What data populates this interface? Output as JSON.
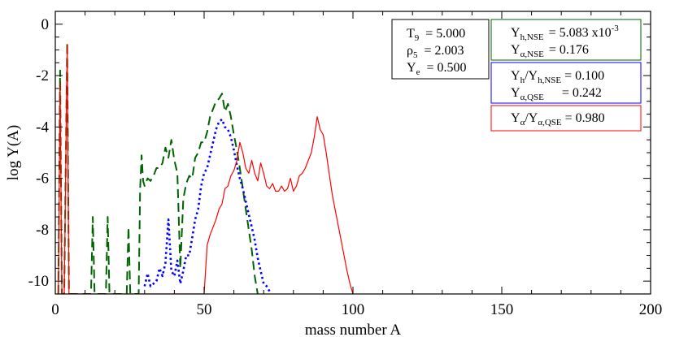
{
  "chart_data": {
    "type": "line",
    "xlabel": "mass number A",
    "ylabel": "log Y(A)",
    "xlim": [
      0,
      200
    ],
    "ylim": [
      -10.5,
      0.5
    ],
    "xticks": [
      0,
      50,
      100,
      150,
      200
    ],
    "xtick_labels": [
      "0",
      "50",
      "100",
      "150",
      "200"
    ],
    "yticks": [
      0,
      -2,
      -4,
      -6,
      -8,
      -10
    ],
    "ytick_labels": [
      "0",
      "-2",
      "-4",
      "-6",
      "-8",
      "-10"
    ],
    "grid": false,
    "series": [
      {
        "color": "#006400",
        "dash": "long-dash",
        "x": [
          1,
          1.6,
          2.2,
          3,
          4,
          4.6,
          12,
          12.6,
          13.2,
          17,
          17.6,
          18.2,
          24,
          24.6,
          25.2,
          28,
          28.5,
          29,
          29.5,
          30,
          31,
          32,
          33,
          34,
          35,
          36,
          37,
          38,
          39,
          40,
          41,
          42,
          43,
          44,
          45,
          46,
          47,
          48,
          49,
          50,
          51,
          52,
          53,
          54,
          55,
          56,
          57,
          58,
          59,
          60,
          61,
          62,
          63,
          64,
          65,
          66,
          67,
          68
        ],
        "y": [
          -10.5,
          -1.8,
          -10.5,
          -10.5,
          -0.7,
          -10.5,
          -10.5,
          -7.5,
          -10.5,
          -10.5,
          -7.5,
          -10.5,
          -10.5,
          -7.9,
          -10.5,
          -10.5,
          -6.4,
          -5.1,
          -6.1,
          -6.3,
          -6.0,
          -6.1,
          -5.9,
          -5.6,
          -5.6,
          -5.4,
          -4.8,
          -5.2,
          -4.5,
          -5.3,
          -5.8,
          -9.5,
          -6.8,
          -6.2,
          -5.9,
          -6.0,
          -5.2,
          -5.0,
          -4.6,
          -4.6,
          -4.2,
          -3.6,
          -3.3,
          -3.0,
          -2.9,
          -2.7,
          -3.4,
          -3.1,
          -3.6,
          -4.3,
          -4.9,
          -5.6,
          -6.4,
          -7.2,
          -8.0,
          -8.8,
          -9.8,
          -10.5
        ]
      },
      {
        "color": "#0000ff",
        "dash": "dotted",
        "x": [
          30,
          31,
          32,
          33,
          34,
          35,
          36,
          37,
          38,
          39,
          40,
          41,
          42,
          43,
          44,
          45,
          46,
          47,
          48,
          49,
          50,
          51,
          52,
          53,
          54,
          55,
          56,
          57,
          58,
          59,
          60,
          61,
          62,
          63,
          64,
          65,
          66,
          67,
          68,
          69,
          70,
          71,
          72
        ],
        "y": [
          -10.2,
          -9.7,
          -10.2,
          -10.1,
          -10.0,
          -9.5,
          -9.8,
          -9.3,
          -7.6,
          -9.6,
          -9.8,
          -9.2,
          -10.1,
          -9.6,
          -9.0,
          -9.0,
          -8.3,
          -7.6,
          -7.2,
          -6.3,
          -5.8,
          -5.6,
          -5.1,
          -4.6,
          -4.1,
          -3.8,
          -3.7,
          -4.0,
          -4.1,
          -4.4,
          -4.9,
          -5.5,
          -6.0,
          -6.4,
          -6.9,
          -7.4,
          -7.9,
          -8.4,
          -9.1,
          -9.6,
          -10.1,
          -10.2,
          -10.4
        ]
      },
      {
        "color": "#ff0000",
        "dash": "solid",
        "x": [
          1,
          1.6,
          2.2,
          3,
          4,
          4.6,
          50,
          51,
          52,
          53,
          54,
          55,
          56,
          57,
          58,
          59,
          60,
          61,
          62,
          63,
          64,
          65,
          66,
          67,
          68,
          69,
          70,
          71,
          72,
          73,
          74,
          75,
          76,
          77,
          78,
          79,
          80,
          81,
          82,
          83,
          84,
          85,
          86,
          87,
          88,
          89,
          90,
          91,
          92,
          93,
          94,
          95,
          96,
          97,
          98,
          99,
          100
        ],
        "y": [
          -10.5,
          -2.3,
          -10.5,
          -10.5,
          -0.8,
          -10.5,
          -10.5,
          -8.6,
          -8.2,
          -7.9,
          -7.6,
          -7.2,
          -7.0,
          -6.4,
          -6.3,
          -5.9,
          -5.7,
          -5.3,
          -4.6,
          -5.0,
          -5.6,
          -5.8,
          -5.3,
          -5.8,
          -6.1,
          -5.4,
          -5.8,
          -6.3,
          -6.4,
          -6.2,
          -6.5,
          -6.5,
          -6.3,
          -6.5,
          -6.4,
          -6.0,
          -6.5,
          -6.3,
          -5.9,
          -5.8,
          -5.6,
          -5.3,
          -5.0,
          -4.4,
          -3.6,
          -4.1,
          -4.3,
          -5.0,
          -5.8,
          -6.6,
          -7.2,
          -7.8,
          -8.4,
          -9.0,
          -9.6,
          -10.1,
          -10.5
        ]
      }
    ],
    "info_box": {
      "rows": [
        {
          "sym": "T",
          "sub": "9",
          "val": "= 5.000"
        },
        {
          "sym": "ρ",
          "sub": "5",
          "val": "= 2.003"
        },
        {
          "sym": "Y",
          "sub": "e",
          "val": "= 0.500"
        }
      ]
    },
    "legend_boxes": [
      {
        "color": "#006400",
        "lines": [
          {
            "sym": "Y",
            "sub": "h,NSE",
            "val": "= 5.083 x10",
            "sup": "-3"
          },
          {
            "sym": "Y",
            "sub": "α,NSE",
            "val": "= 0.176",
            "sup": ""
          }
        ]
      },
      {
        "color": "#0000ff",
        "lines": [
          {
            "sym": "Y",
            "sub": "h",
            "val": "/Y",
            "sub2": "h,NSE",
            "val2": " = 0.100"
          },
          {
            "sym": "Y",
            "sub": "α,QSE",
            "val": "= 0.242",
            "sub2": "",
            "val2": ""
          }
        ]
      },
      {
        "color": "#ff0000",
        "lines": [
          {
            "sym": "Y",
            "sub": "α",
            "val": "/Y",
            "sub2": "α,QSE",
            "val2": " = 0.980"
          }
        ]
      }
    ]
  }
}
